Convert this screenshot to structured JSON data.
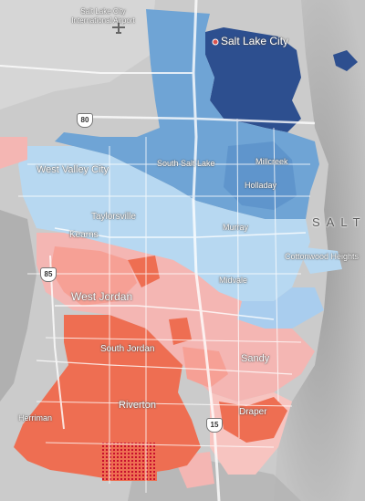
{
  "map": {
    "labels": {
      "airport": "Salt Lake City International Airport",
      "slc": "Salt Lake City",
      "west_valley": "West Valley City",
      "south_salt_lake": "South Salt Lake",
      "millcreek": "Millcreek",
      "holladay": "Holladay",
      "taylorsville": "Taylorsville",
      "murray": "Murray",
      "kearns": "Kearns",
      "cottonwood": "Cottonwood Heights",
      "salt": "SALT",
      "west_jordan": "West Jordan",
      "midvale": "Midvale",
      "south_jordan": "South Jordan",
      "sandy": "Sandy",
      "riverton": "Riverton",
      "herriman": "Herriman",
      "draper": "Draper"
    },
    "shields": {
      "i80": "80",
      "i85": "85",
      "i15": "15"
    },
    "colors": {
      "dark_blue": "#2d4f8f",
      "mid_blue": "#6fa4d5",
      "light_blue": "#b7d8f1",
      "light_pink": "#f4b6b3",
      "pink": "#f6a095",
      "red": "#ee6e52",
      "terrain": "#c9c9c9",
      "roads": "#ffffff"
    }
  }
}
